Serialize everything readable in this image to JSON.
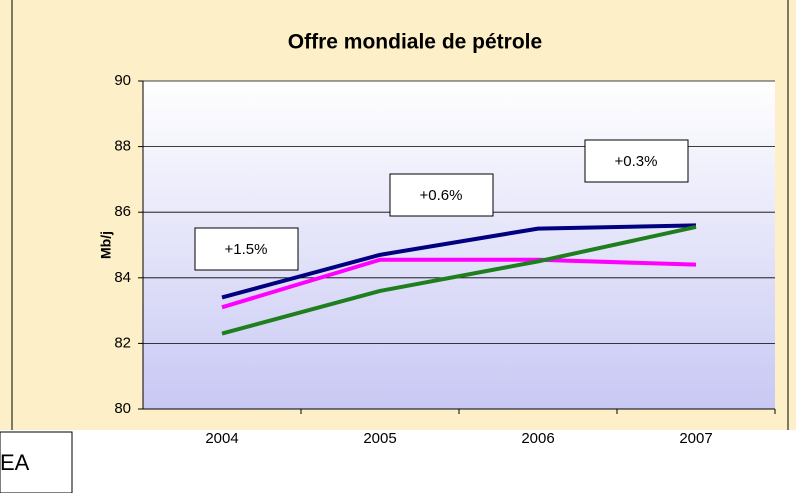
{
  "chart_data": {
    "type": "line",
    "title": "Offre mondiale de pétrole",
    "y_label": "Mb/j",
    "categories": [
      "2004",
      "2005",
      "2006",
      "2007"
    ],
    "series": [
      {
        "color": "#000080",
        "values": [
          83.4,
          84.7,
          85.5,
          85.6
        ]
      },
      {
        "color": "#ff00ff",
        "values": [
          83.1,
          84.55,
          84.55,
          84.4
        ]
      },
      {
        "color": "#1f7f1f",
        "values": [
          82.3,
          83.6,
          84.5,
          85.55
        ]
      }
    ],
    "ylim": [
      80,
      90
    ],
    "yticks": [
      80,
      82,
      84,
      86,
      88,
      90
    ],
    "grid": true,
    "annotations": [
      "+1.5%",
      "+0.6%",
      "+0.3%"
    ],
    "footer_note": "EA"
  }
}
